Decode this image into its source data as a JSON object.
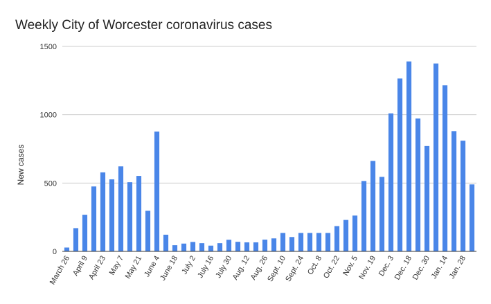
{
  "chart_data": {
    "type": "bar",
    "title": "Weekly City of Worcester coronavirus cases",
    "xlabel": "",
    "ylabel": "New cases",
    "ylim": [
      0,
      1500
    ],
    "yticks": [
      0,
      500,
      1000,
      1500
    ],
    "grid": true,
    "color": "#4a86e8",
    "tick_labels": [
      "March 26",
      "April 9",
      "April 23",
      "May 7",
      "May 21",
      "June 4",
      "June 18",
      "July 2",
      "July 16",
      "July 30",
      "Aug. 12",
      "Aug. 26",
      "Sept. 10",
      "Sept. 24",
      "Oct. 8",
      "Oct. 22",
      "Nov. 5",
      "Nov. 19",
      "Dec. 3",
      "Dec. 18",
      "Dec. 30",
      "Jan. 14",
      "Jan. 28"
    ],
    "values": [
      28,
      170,
      268,
      475,
      578,
      527,
      622,
      506,
      552,
      297,
      877,
      122,
      45,
      57,
      69,
      60,
      42,
      60,
      85,
      70,
      66,
      66,
      86,
      95,
      135,
      105,
      135,
      135,
      135,
      135,
      185,
      230,
      262,
      515,
      662,
      545,
      1010,
      1265,
      1390,
      972,
      771,
      1375,
      1215,
      880,
      810,
      490
    ]
  }
}
